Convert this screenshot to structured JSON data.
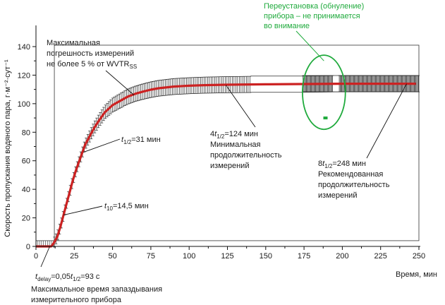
{
  "chart_data": {
    "type": "line",
    "xlabel": "Время, мин",
    "ylabel": "Скорость пропускания водяного пара, г·м⁻²·сут⁻¹",
    "xlim": [
      0,
      250
    ],
    "ylim": [
      0,
      140
    ],
    "x_ticks": [
      "0",
      "25",
      "50",
      "75",
      "100",
      "125",
      "150",
      "175",
      "200",
      "225",
      "250"
    ],
    "y_ticks": [
      "0",
      "20",
      "40",
      "60",
      "80",
      "100",
      "120",
      "140"
    ],
    "grid": false,
    "series": [
      {
        "color": "#cc2222",
        "x": [
          0,
          10,
          12,
          14,
          16,
          18,
          20,
          22,
          24,
          26,
          28,
          30,
          32,
          35,
          38,
          41,
          45,
          50,
          55,
          60,
          65,
          70,
          75,
          80,
          90,
          100,
          110,
          124,
          150,
          175,
          200,
          225,
          248
        ],
        "y": [
          0,
          0,
          3,
          7,
          14,
          22,
          30,
          38,
          46,
          53,
          59,
          65,
          71,
          77,
          83,
          88,
          94,
          99,
          102,
          105,
          107,
          108.5,
          109.8,
          110.8,
          112,
          112.6,
          113,
          113.3,
          113.6,
          113.8,
          114,
          114,
          114
        ]
      }
    ],
    "error_bar_pct": 5,
    "baseline_band": [
      0,
      4
    ],
    "ramp_error_abs": 3.5,
    "outlier_point": {
      "x": 189,
      "y": 90
    },
    "outlier_circle": {
      "cx": 188,
      "cy": 108,
      "rx": 7,
      "ry": 26
    },
    "reference_box": {
      "x0": 12,
      "x1": 250,
      "y0": 4,
      "y1": 141
    },
    "annotations": [
      {
        "id": "max_error",
        "lines": [
          "Максимальная",
          "погрешность измерений",
          "не более 5 % от WVTR"
        ],
        "sub_last": "SS",
        "point": [
          64,
          106
        ]
      },
      {
        "id": "t_half",
        "text": "=31 мин",
        "t_sub": "1/2",
        "point": [
          31,
          66
        ]
      },
      {
        "id": "t10",
        "text": "=14,5 мин",
        "t_sub": "10",
        "point": [
          18,
          22
        ]
      },
      {
        "id": "t_delay",
        "lines": [
          "=0,05",
          "=93 с",
          "Максимальное время запаздывания",
          "измерительного прибора"
        ],
        "sub": [
          "delay",
          "1/2"
        ],
        "point": [
          9,
          0
        ]
      },
      {
        "id": "min_duration",
        "lines": [
          "4",
          "=124 мин",
          "Минимальная",
          "продолжительность",
          "измерений"
        ],
        "sub": "1/2",
        "point": [
          124,
          113
        ]
      },
      {
        "id": "rec_duration",
        "lines": [
          "8",
          "=248 мин",
          "Рекомендованная",
          "продолжительность",
          "измерений"
        ],
        "sub": "1/2",
        "point": [
          242,
          114
        ]
      },
      {
        "id": "reset",
        "lines": [
          "Переустановка (обнуление)",
          "прибора – не принимается",
          "во внимание"
        ],
        "point": [
          188,
          130
        ],
        "color": "#1faa3c"
      }
    ]
  }
}
